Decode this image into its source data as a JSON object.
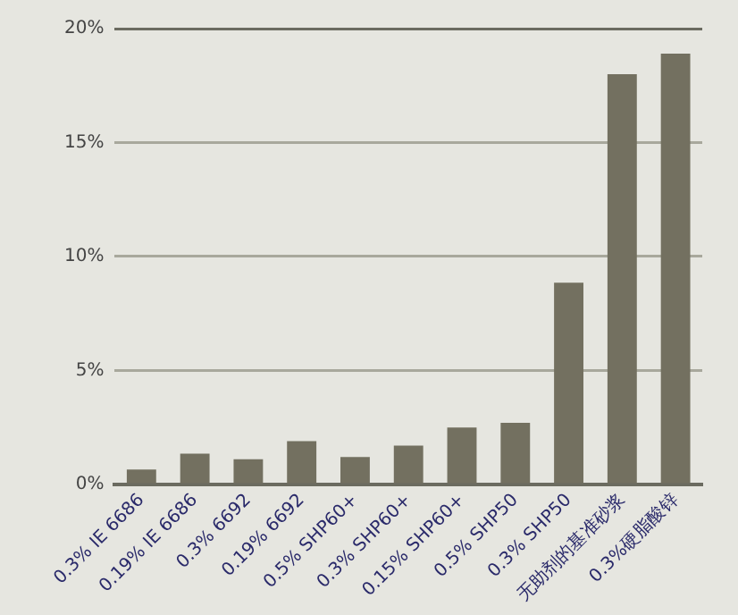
{
  "chart_data": {
    "type": "bar",
    "categories": [
      "0.3% IE 6686",
      "0.19% IE 6686",
      "0.3% 6692",
      "0.19% 6692",
      "0.5% SHP60+",
      "0.3% SHP60+",
      "0.15% SHP60+",
      "0.5% SHP50",
      "0.3% SHP50",
      "无助剂的基准砂浆",
      "0.3%硬脂酸锌"
    ],
    "values": [
      0.65,
      1.35,
      1.1,
      1.9,
      1.2,
      1.7,
      2.5,
      2.7,
      8.85,
      18.0,
      18.9
    ],
    "color": "#737060",
    "ylim": [
      0,
      20
    ],
    "yticks": [
      {
        "value": 0,
        "label": "0%"
      },
      {
        "value": 5,
        "label": "5%"
      },
      {
        "value": 10,
        "label": "10%"
      },
      {
        "value": 15,
        "label": "15%"
      },
      {
        "value": 20,
        "label": "20%"
      }
    ],
    "grid": "y",
    "legend": false
  }
}
